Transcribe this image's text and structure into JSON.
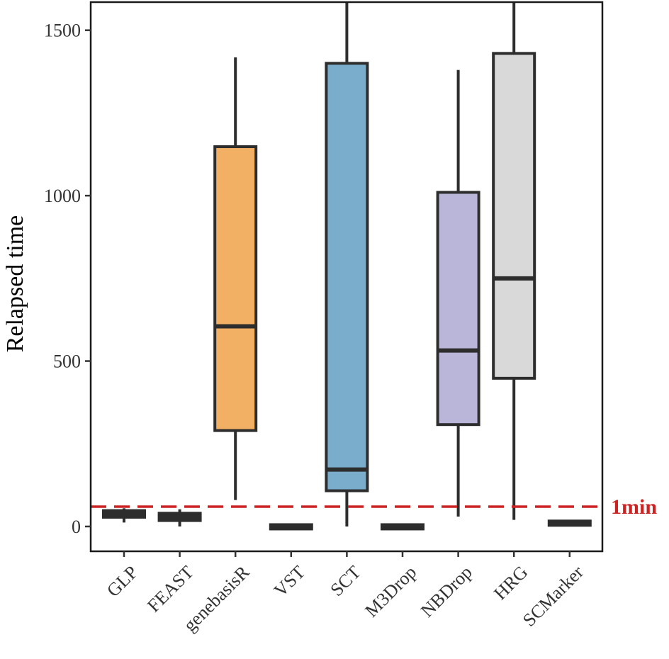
{
  "chart_data": {
    "type": "boxplot",
    "title": "",
    "xlabel": "",
    "ylabel": "Relapsed time",
    "ylim": [
      -75,
      1585
    ],
    "yticks": [
      0,
      500,
      1000,
      1500
    ],
    "grid": false,
    "legend": "none",
    "categories": [
      "GLP",
      "FEAST",
      "genebasisR",
      "VST",
      "SCT",
      "M3Drop",
      "NBDrop",
      "HRG",
      "SCMarker"
    ],
    "boxes": [
      {
        "label": "GLP",
        "whisker_low": 12,
        "q1": 28,
        "median": 38,
        "q3": 48,
        "whisker_high": 55,
        "color": "#2d2d2d"
      },
      {
        "label": "FEAST",
        "whisker_low": 0,
        "q1": 18,
        "median": 28,
        "q3": 40,
        "whisker_high": 52,
        "color": "#2d2d2d"
      },
      {
        "label": "genebasisR",
        "whisker_low": 80,
        "q1": 290,
        "median": 605,
        "q3": 1148,
        "whisker_high": 1418,
        "color": "#f2b064"
      },
      {
        "label": "VST",
        "whisker_low": -3,
        "q1": -3,
        "median": -1,
        "q3": 1,
        "whisker_high": 1,
        "color": "#2d2d2d"
      },
      {
        "label": "SCT",
        "whisker_low": 0,
        "q1": 108,
        "median": 172,
        "q3": 1400,
        "whisker_high": 1585,
        "color": "#7aaccc"
      },
      {
        "label": "M3Drop",
        "whisker_low": -3,
        "q1": -3,
        "median": -1,
        "q3": 1,
        "whisker_high": 1,
        "color": "#2d2d2d"
      },
      {
        "label": "NBDrop",
        "whisker_low": 30,
        "q1": 308,
        "median": 532,
        "q3": 1010,
        "whisker_high": 1380,
        "color": "#bab6d9"
      },
      {
        "label": "HRG",
        "whisker_low": 20,
        "q1": 448,
        "median": 750,
        "q3": 1430,
        "whisker_high": 1585,
        "color": "#d9d9d9"
      },
      {
        "label": "SCMarker",
        "whisker_low": 5,
        "q1": 5,
        "median": 10,
        "q3": 15,
        "whisker_high": 15,
        "color": "#2d2d2d"
      }
    ],
    "reference_line": {
      "value": 60,
      "label": "1min",
      "color": "#cc2222",
      "style": "dashed"
    }
  }
}
